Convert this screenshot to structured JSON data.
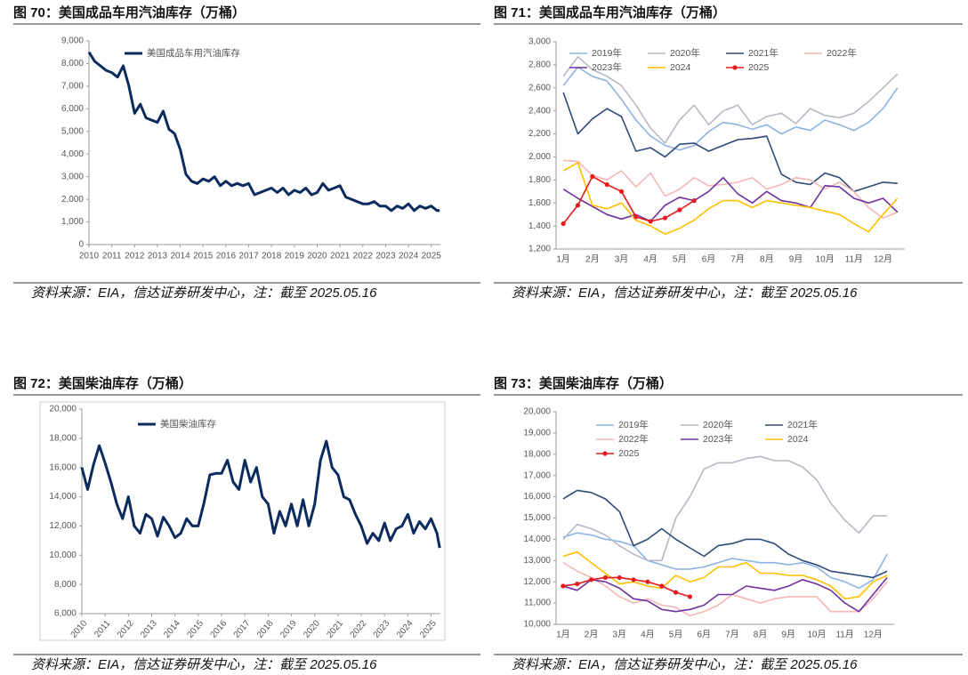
{
  "chart_data": [
    {
      "type": "line",
      "title": "图 70：美国成品车用汽油库存（万桶）",
      "source": "资料来源：EIA，信达证券研发中心，注：截至 2025.05.16",
      "x": [
        2010,
        2010.25,
        2010.5,
        2010.75,
        2011,
        2011.25,
        2011.5,
        2011.75,
        2012,
        2012.25,
        2012.5,
        2012.75,
        2013,
        2013.25,
        2013.5,
        2013.75,
        2014,
        2014.25,
        2014.5,
        2014.75,
        2015,
        2015.25,
        2015.5,
        2015.75,
        2016,
        2016.25,
        2016.5,
        2016.75,
        2017,
        2017.25,
        2017.5,
        2017.75,
        2018,
        2018.25,
        2018.5,
        2018.75,
        2019,
        2019.25,
        2019.5,
        2019.75,
        2020,
        2020.25,
        2020.5,
        2020.75,
        2021,
        2021.25,
        2021.5,
        2021.75,
        2022,
        2022.25,
        2022.5,
        2022.75,
        2023,
        2023.25,
        2023.5,
        2023.75,
        2024,
        2024.25,
        2024.5,
        2024.75,
        2025,
        2025.25,
        2025.37
      ],
      "series": [
        {
          "name": "美国成品车用汽油库存",
          "color": "#0b2a5e",
          "values": [
            8500,
            8100,
            7900,
            7700,
            7600,
            7400,
            7900,
            7000,
            5800,
            6200,
            5600,
            5500,
            5400,
            5900,
            5100,
            4900,
            4200,
            3100,
            2800,
            2700,
            2900,
            2800,
            3000,
            2600,
            2800,
            2600,
            2700,
            2600,
            2700,
            2200,
            2300,
            2400,
            2500,
            2300,
            2500,
            2200,
            2400,
            2300,
            2500,
            2200,
            2300,
            2700,
            2400,
            2500,
            2600,
            2100,
            2000,
            1900,
            1800,
            1800,
            1900,
            1700,
            1700,
            1500,
            1700,
            1600,
            1800,
            1500,
            1700,
            1600,
            1700,
            1500,
            1500
          ]
        }
      ],
      "xlim": [
        2010,
        2025.4
      ],
      "xticks": [
        2010,
        2011,
        2012,
        2013,
        2014,
        2015,
        2016,
        2017,
        2018,
        2019,
        2020,
        2021,
        2022,
        2023,
        2024,
        2025
      ],
      "ylim": [
        0,
        9000
      ],
      "yticks": [
        0,
        {
          "value": 1000,
          "label": "1,000"
        },
        {
          "value": 2000,
          "label": "2,000"
        },
        {
          "value": 3000,
          "label": "3,000"
        },
        {
          "value": 4000,
          "label": "4,000"
        },
        {
          "value": 5000,
          "label": "5,000"
        },
        {
          "value": 6000,
          "label": "6,000"
        },
        {
          "value": 7000,
          "label": "7,000"
        },
        {
          "value": 8000,
          "label": "8,000"
        },
        {
          "value": 9000,
          "label": "9,000"
        }
      ],
      "grid": false,
      "legend": "upper left"
    },
    {
      "type": "line",
      "title": "图 71：美国成品车用汽油库存（万桶）",
      "source": "资料来源：EIA，信达证券研发中心，注：截至 2025.05.16",
      "categories": [
        "1月",
        null,
        "2月",
        null,
        "3月",
        null,
        "4月",
        null,
        "5月",
        null,
        "6月",
        null,
        "7月",
        null,
        "8月",
        null,
        "9月",
        null,
        "10月",
        null,
        "11月",
        null,
        "12月",
        null
      ],
      "series": [
        {
          "name": "2019年",
          "color": "#8db4e2",
          "values": [
            2620,
            2780,
            2700,
            2660,
            2500,
            2320,
            2180,
            2100,
            2060,
            2100,
            2220,
            2300,
            2280,
            2240,
            2280,
            2200,
            2260,
            2230,
            2320,
            2280,
            2230,
            2300,
            2420,
            2600
          ]
        },
        {
          "name": "2020年",
          "color": "#b4bac4",
          "values": [
            2700,
            2870,
            2760,
            2700,
            2620,
            2450,
            2250,
            2120,
            2320,
            2450,
            2280,
            2400,
            2450,
            2280,
            2350,
            2380,
            2290,
            2420,
            2360,
            2340,
            2380,
            2480,
            2600,
            2720
          ]
        },
        {
          "name": "2021年",
          "color": "#2e4a7a",
          "values": [
            2560,
            2200,
            2330,
            2420,
            2350,
            2050,
            2080,
            2000,
            2110,
            2120,
            2050,
            2100,
            2150,
            2160,
            2180,
            1850,
            1780,
            1760,
            1860,
            1820,
            1700,
            1740,
            1780,
            1770
          ]
        },
        {
          "name": "2022年",
          "color": "#f4b6b6",
          "values": [
            1970,
            1960,
            1840,
            1800,
            1880,
            1740,
            1860,
            1660,
            1720,
            1820,
            1750,
            1760,
            1780,
            1820,
            1720,
            1760,
            1820,
            1800,
            1720,
            1780,
            1700,
            1560,
            1470,
            1520
          ]
        },
        {
          "name": "2023年",
          "color": "#7030a0",
          "values": [
            1720,
            1640,
            1570,
            1500,
            1460,
            1500,
            1440,
            1580,
            1650,
            1620,
            1700,
            1820,
            1680,
            1600,
            1700,
            1620,
            1600,
            1560,
            1750,
            1740,
            1640,
            1600,
            1640,
            1520
          ]
        },
        {
          "name": "2024",
          "color": "#ffc000",
          "values": [
            1880,
            1950,
            1580,
            1550,
            1600,
            1450,
            1400,
            1330,
            1380,
            1450,
            1550,
            1620,
            1620,
            1560,
            1620,
            1600,
            1580,
            1560,
            1530,
            1500,
            1420,
            1350,
            1500,
            1640
          ]
        },
        {
          "name": "2025",
          "color": "#e41a1c",
          "marker": "o",
          "values": [
            1420,
            1580,
            1830,
            1760,
            1700,
            1480,
            1440,
            1470,
            1540,
            1620,
            null,
            null,
            null,
            null,
            null,
            null,
            null,
            null,
            null,
            null,
            null,
            null,
            null,
            null
          ]
        }
      ],
      "ylim": [
        1200,
        3000
      ],
      "yticks": [
        {
          "value": 1200,
          "label": "1,200"
        },
        {
          "value": 1400,
          "label": "1,400"
        },
        {
          "value": 1600,
          "label": "1,600"
        },
        {
          "value": 1800,
          "label": "1,800"
        },
        {
          "value": 2000,
          "label": "2,000"
        },
        {
          "value": 2200,
          "label": "2,200"
        },
        {
          "value": 2400,
          "label": "2,400"
        },
        {
          "value": 2600,
          "label": "2,600"
        },
        {
          "value": 2800,
          "label": "2,800"
        },
        {
          "value": 3000,
          "label": "3,000"
        }
      ],
      "grid": false,
      "legend": "upper left"
    },
    {
      "type": "line",
      "title": "图 72：美国柴油库存（万桶）",
      "source": "资料来源：EIA，信达证券研发中心，注：截至 2025.05.16",
      "x": [
        2010,
        2010.25,
        2010.5,
        2010.75,
        2011,
        2011.25,
        2011.5,
        2011.75,
        2012,
        2012.25,
        2012.5,
        2012.75,
        2013,
        2013.25,
        2013.5,
        2013.75,
        2014,
        2014.25,
        2014.5,
        2014.75,
        2015,
        2015.25,
        2015.5,
        2015.75,
        2016,
        2016.25,
        2016.5,
        2016.75,
        2017,
        2017.25,
        2017.5,
        2017.75,
        2018,
        2018.25,
        2018.5,
        2018.75,
        2019,
        2019.25,
        2019.5,
        2019.75,
        2020,
        2020.25,
        2020.5,
        2020.75,
        2021,
        2021.25,
        2021.5,
        2021.75,
        2022,
        2022.25,
        2022.5,
        2022.75,
        2023,
        2023.25,
        2023.5,
        2023.75,
        2024,
        2024.25,
        2024.5,
        2024.75,
        2025,
        2025.25,
        2025.37
      ],
      "series": [
        {
          "name": "美国柴油库存",
          "color": "#0b2a5e",
          "values": [
            16000,
            14500,
            16200,
            17500,
            16300,
            15000,
            13500,
            12500,
            14000,
            12000,
            11500,
            12800,
            12500,
            11300,
            12600,
            12000,
            11200,
            11500,
            12500,
            12000,
            12000,
            13600,
            15500,
            15600,
            15600,
            16500,
            15000,
            14500,
            16500,
            15000,
            16000,
            14000,
            13500,
            11500,
            13000,
            12000,
            13500,
            12000,
            13800,
            12000,
            13500,
            16500,
            17800,
            16000,
            15500,
            14000,
            13800,
            12800,
            12000,
            10800,
            11500,
            11000,
            12200,
            11000,
            11800,
            12000,
            12800,
            11500,
            12300,
            11800,
            12500,
            11500,
            10500
          ]
        }
      ],
      "xlim": [
        2010,
        2025.4
      ],
      "xticks": [
        2010,
        2011,
        2012,
        2013,
        2014,
        2015,
        2016,
        2017,
        2018,
        2019,
        2020,
        2021,
        2022,
        2023,
        2024,
        2025
      ],
      "ylim": [
        6000,
        20000
      ],
      "yticks": [
        {
          "value": 6000,
          "label": "6,000"
        },
        {
          "value": 8000,
          "label": "8,000"
        },
        {
          "value": 10000,
          "label": "10,000"
        },
        {
          "value": 12000,
          "label": "12,000"
        },
        {
          "value": 14000,
          "label": "14,000"
        },
        {
          "value": 16000,
          "label": "16,000"
        },
        {
          "value": 18000,
          "label": "18,000"
        },
        {
          "value": 20000,
          "label": "20,000"
        }
      ],
      "grid": false,
      "legend": "upper left"
    },
    {
      "type": "line",
      "title": "图 73：美国柴油库存（万桶）",
      "source": "资料来源：EIA，信达证券研发中心，注：截至 2025.05.16",
      "categories": [
        "1月",
        null,
        "2月",
        null,
        "3月",
        null,
        "4月",
        null,
        "5月",
        null,
        "6月",
        null,
        "7月",
        null,
        "8月",
        null,
        "9月",
        null,
        "10月",
        null,
        "11月",
        null,
        "12月",
        null
      ],
      "series": [
        {
          "name": "2019年",
          "color": "#8db4e2",
          "values": [
            14100,
            14300,
            14200,
            14000,
            13900,
            13700,
            13000,
            12800,
            12600,
            12600,
            12700,
            12900,
            13100,
            13000,
            12900,
            12900,
            12800,
            12900,
            12700,
            12200,
            12000,
            11700,
            12100,
            13300
          ]
        },
        {
          "name": "2020年",
          "color": "#b4bac4",
          "values": [
            14000,
            14700,
            14500,
            14200,
            13700,
            13300,
            13000,
            13000,
            15000,
            16000,
            17300,
            17600,
            17600,
            17800,
            17900,
            17700,
            17700,
            17400,
            16800,
            15700,
            14900,
            14300,
            15100,
            15100
          ]
        },
        {
          "name": "2021年",
          "color": "#2e4a7a",
          "values": [
            15900,
            16300,
            16200,
            15900,
            15300,
            13700,
            14000,
            14500,
            14000,
            13600,
            13200,
            13700,
            13800,
            14000,
            14000,
            13800,
            13300,
            13000,
            12800,
            12500,
            12400,
            12300,
            12200,
            12500
          ]
        },
        {
          "name": "2022年",
          "color": "#f4b6b6",
          "values": [
            12900,
            12500,
            12200,
            11800,
            11300,
            11000,
            11200,
            10900,
            10800,
            10400,
            10600,
            10900,
            11400,
            11200,
            11000,
            11200,
            11300,
            11300,
            11300,
            10600,
            10600,
            10600,
            11200,
            12000
          ]
        },
        {
          "name": "2023年",
          "color": "#7030a0",
          "values": [
            11800,
            11600,
            12100,
            12000,
            11700,
            11200,
            11100,
            10700,
            10600,
            10700,
            10900,
            11400,
            11400,
            11800,
            11700,
            11600,
            11800,
            12100,
            11900,
            11600,
            11000,
            10600,
            11400,
            12200
          ]
        },
        {
          "name": "2024",
          "color": "#ffc000",
          "values": [
            13200,
            13400,
            12900,
            12400,
            11900,
            12000,
            11800,
            11700,
            12300,
            12000,
            12200,
            12700,
            12700,
            12900,
            12400,
            12400,
            12300,
            12300,
            12100,
            11800,
            11200,
            11300,
            12000,
            12300
          ]
        },
        {
          "name": "2025",
          "color": "#e41a1c",
          "marker": "o",
          "values": [
            11800,
            11900,
            12100,
            12200,
            12200,
            12100,
            12000,
            11800,
            11500,
            11300,
            null,
            null,
            null,
            null,
            null,
            null,
            null,
            null,
            null,
            null,
            null,
            null,
            null,
            null
          ]
        }
      ],
      "ylim": [
        10000,
        20000
      ],
      "yticks": [
        {
          "value": 10000,
          "label": "10,000"
        },
        {
          "value": 11000,
          "label": "11,000"
        },
        {
          "value": 12000,
          "label": "12,000"
        },
        {
          "value": 13000,
          "label": "13,000"
        },
        {
          "value": 14000,
          "label": "14,000"
        },
        {
          "value": 15000,
          "label": "15,000"
        },
        {
          "value": 16000,
          "label": "16,000"
        },
        {
          "value": 17000,
          "label": "17,000"
        },
        {
          "value": 18000,
          "label": "18,000"
        },
        {
          "value": 19000,
          "label": "19,000"
        },
        {
          "value": 20000,
          "label": "20,000"
        }
      ],
      "grid": false,
      "legend": "upper left"
    }
  ]
}
